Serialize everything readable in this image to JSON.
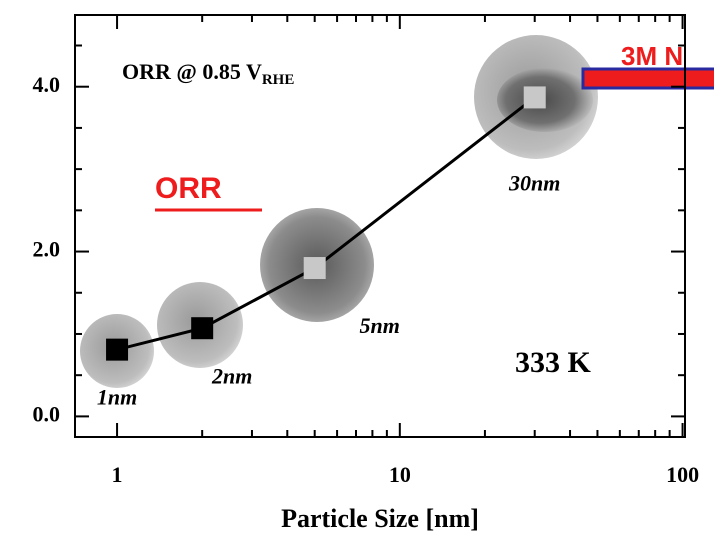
{
  "chart_data": {
    "type": "line",
    "x": [
      1,
      2,
      5,
      30
    ],
    "values": [
      0.81,
      1.07,
      1.8,
      3.87
    ],
    "color": "#000000",
    "marker_colors": [
      "#000000",
      "#000000",
      "#c8c8c8",
      "#c8c8c8"
    ],
    "point_labels": [
      "1nm",
      "2nm",
      "5nm",
      "30nm"
    ],
    "xlabel": "Particle Size [nm]",
    "xscale": "log",
    "xlim": [
      0.71,
      102
    ],
    "ylim": [
      -0.25,
      4.87
    ],
    "xticks": [
      1,
      10,
      100
    ],
    "xminorticks": [
      2,
      3,
      4,
      5,
      6,
      7,
      8,
      9,
      20,
      30,
      40,
      50,
      60,
      70,
      80,
      90
    ],
    "yticks": [
      {
        "value": 0,
        "label": "0.0"
      },
      {
        "value": 2,
        "label": "2.0"
      },
      {
        "value": 4,
        "label": "4.0"
      }
    ],
    "yminorticks": [
      0.5,
      1,
      1.5,
      2.5,
      3,
      3.5,
      4.5
    ],
    "annotations": {
      "condition": "ORR @ 0.85 V",
      "condition_sub": "RHE",
      "orr": "ORR",
      "brand": "3M N",
      "temperature": "333 K"
    }
  }
}
